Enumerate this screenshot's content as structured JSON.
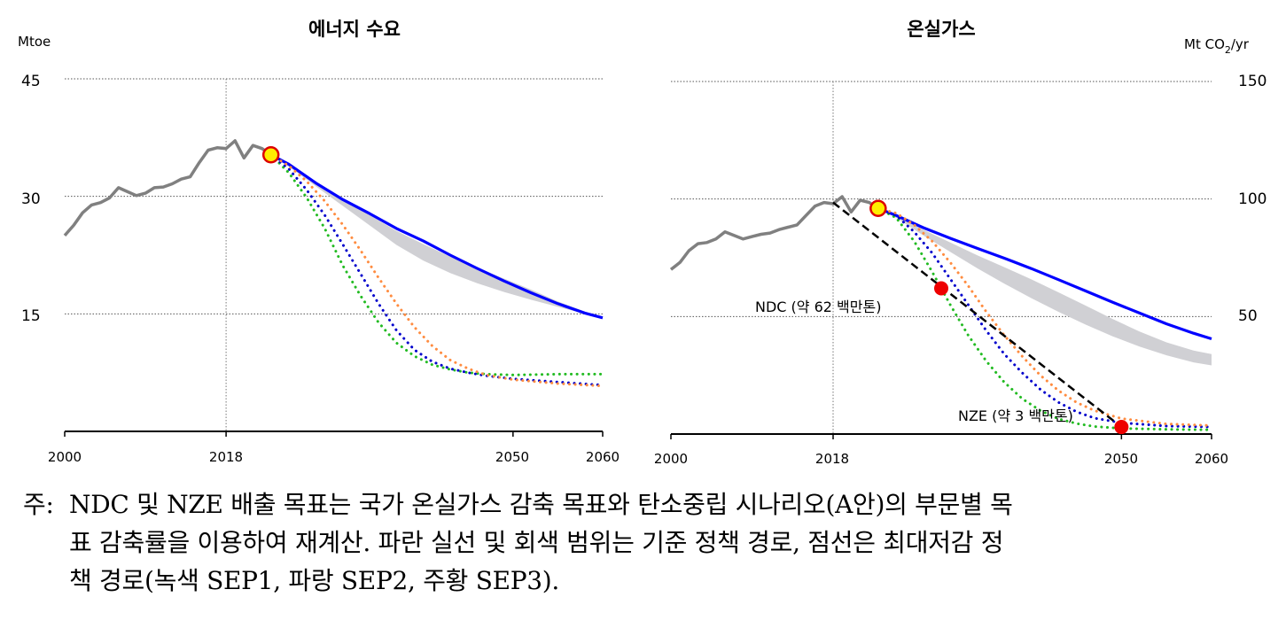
{
  "chart_data": [
    {
      "type": "line",
      "title": "에너지 수요",
      "ylabel": "Mtoe",
      "xlim": [
        2000,
        2060
      ],
      "ylim": [
        0,
        45
      ],
      "y_ticks": [
        "15",
        "30",
        "45"
      ],
      "x_ticks": [
        "2000",
        "2018",
        "2050",
        "2060"
      ],
      "grid": "horizontal dotted",
      "vline": 2018,
      "marker": {
        "x": 2023,
        "y": 35.3
      },
      "band": {
        "x": [
          2023,
          2025,
          2028,
          2031,
          2034,
          2037,
          2040,
          2043,
          2046,
          2049,
          2052,
          2055,
          2058,
          2060
        ],
        "lower": [
          35.3,
          33.8,
          31.3,
          28.8,
          26.3,
          23.8,
          21.8,
          20.2,
          18.9,
          17.8,
          16.8,
          15.9,
          15.0,
          14.6
        ],
        "upper": [
          35.3,
          34.0,
          31.8,
          29.7,
          27.6,
          25.6,
          23.9,
          22.3,
          20.9,
          19.5,
          18.1,
          16.6,
          15.3,
          14.6
        ]
      },
      "series": [
        {
          "color": "#808080",
          "style": "solid",
          "x": [
            2000,
            2001,
            2002,
            2003,
            2004,
            2005,
            2006,
            2007,
            2008,
            2009,
            2010,
            2011,
            2012,
            2013,
            2014,
            2015,
            2016,
            2017,
            2018,
            2019,
            2020,
            2021,
            2022,
            2023
          ],
          "y": [
            25.0,
            26.3,
            27.9,
            28.9,
            29.2,
            29.8,
            31.1,
            30.6,
            30.1,
            30.4,
            31.1,
            31.2,
            31.6,
            32.2,
            32.5,
            34.3,
            35.9,
            36.2,
            36.1,
            37.1,
            34.9,
            36.5,
            36.1,
            35.3
          ]
        },
        {
          "color": "#0000ff",
          "style": "solid",
          "x": [
            2023,
            2025,
            2028,
            2031,
            2034,
            2037,
            2040,
            2043,
            2046,
            2049,
            2052,
            2055,
            2058,
            2060
          ],
          "y": [
            35.3,
            34.1,
            31.7,
            29.6,
            27.8,
            25.9,
            24.3,
            22.5,
            20.8,
            19.2,
            17.7,
            16.3,
            15.1,
            14.5
          ]
        },
        {
          "color": "#22bb22",
          "style": "dotted",
          "x": [
            2023,
            2025,
            2027,
            2029,
            2031,
            2033,
            2035,
            2037,
            2039,
            2041,
            2043,
            2045,
            2047,
            2050,
            2055,
            2060
          ],
          "y": [
            35.3,
            33.0,
            29.8,
            25.9,
            21.2,
            17.3,
            13.9,
            11.3,
            9.6,
            8.5,
            7.9,
            7.5,
            7.3,
            7.2,
            7.3,
            7.3
          ]
        },
        {
          "color": "#0000cc",
          "style": "dotted",
          "x": [
            2023,
            2025,
            2027,
            2029,
            2031,
            2033,
            2035,
            2037,
            2039,
            2041,
            2043,
            2045,
            2047,
            2050,
            2055,
            2060
          ],
          "y": [
            35.3,
            33.5,
            30.8,
            27.6,
            23.9,
            20.1,
            16.3,
            12.9,
            10.4,
            8.9,
            8.0,
            7.5,
            7.1,
            6.7,
            6.3,
            5.9
          ]
        },
        {
          "color": "#ff8c40",
          "style": "dotted",
          "x": [
            2023,
            2025,
            2027,
            2029,
            2031,
            2033,
            2035,
            2037,
            2039,
            2041,
            2043,
            2045,
            2047,
            2050,
            2055,
            2060
          ],
          "y": [
            35.3,
            33.9,
            31.9,
            29.4,
            26.4,
            23.1,
            19.6,
            16.3,
            13.3,
            10.9,
            9.1,
            8.0,
            7.2,
            6.6,
            6.1,
            5.8
          ]
        }
      ]
    },
    {
      "type": "line",
      "title": "온실가스",
      "ylabel": "Mt CO",
      "ylabel_sub": "2",
      "ylabel_suffix": "/yr",
      "xlim": [
        2000,
        2060
      ],
      "ylim": [
        0,
        150
      ],
      "y_ticks": [
        "50",
        "100",
        "150"
      ],
      "x_ticks": [
        "2000",
        "2018",
        "2050",
        "2060"
      ],
      "grid": "horizontal dotted",
      "vline": 2018,
      "marker": {
        "x": 2023,
        "y": 96
      },
      "band": {
        "x": [
          2023,
          2025,
          2028,
          2031,
          2034,
          2037,
          2040,
          2043,
          2046,
          2049,
          2052,
          2055,
          2058,
          2060
        ],
        "lower": [
          96,
          92,
          84.5,
          77.5,
          70.5,
          64.0,
          57.8,
          52.0,
          46.6,
          41.6,
          37.2,
          33.5,
          30.5,
          29.2
        ],
        "upper": [
          96,
          93,
          87.0,
          81.5,
          76.0,
          71.0,
          65.8,
          60.3,
          54.7,
          49.0,
          43.6,
          39.0,
          35.5,
          34.0
        ]
      },
      "series": [
        {
          "color": "#808080",
          "style": "solid",
          "x": [
            2000,
            2001,
            2002,
            2003,
            2004,
            2005,
            2006,
            2007,
            2008,
            2009,
            2010,
            2011,
            2012,
            2013,
            2014,
            2015,
            2016,
            2017,
            2018,
            2019,
            2020,
            2021,
            2022,
            2023
          ],
          "y": [
            70,
            73,
            78,
            81,
            81.5,
            83,
            86,
            84.5,
            83,
            84,
            85,
            85.5,
            87,
            88,
            89,
            93,
            97,
            98.5,
            98,
            101,
            94.5,
            99.5,
            98.5,
            96
          ]
        },
        {
          "color": "#0000ff",
          "style": "solid",
          "x": [
            2023,
            2025,
            2028,
            2031,
            2034,
            2037,
            2040,
            2043,
            2046,
            2049,
            2052,
            2055,
            2058,
            2060
          ],
          "y": [
            96,
            93,
            87.8,
            83.3,
            79,
            74.8,
            70.4,
            65.7,
            60.9,
            56.1,
            51.5,
            46.9,
            42.9,
            40.5
          ]
        },
        {
          "color": "#22bb22",
          "style": "dotted",
          "x": [
            2023,
            2025,
            2027,
            2029,
            2031,
            2033,
            2035,
            2037,
            2039,
            2041,
            2043,
            2045,
            2047,
            2050,
            2055,
            2060
          ],
          "y": [
            96,
            92,
            82,
            69,
            55,
            42,
            31,
            22,
            15,
            10,
            6.5,
            4.5,
            3.2,
            2.4,
            2.0,
            1.8
          ]
        },
        {
          "color": "#0000cc",
          "style": "dotted",
          "x": [
            2023,
            2025,
            2027,
            2029,
            2031,
            2033,
            2035,
            2037,
            2039,
            2041,
            2043,
            2045,
            2047,
            2050,
            2055,
            2060
          ],
          "y": [
            96,
            93,
            86,
            77,
            66,
            55,
            44,
            34,
            26,
            19,
            13.5,
            9.5,
            6.8,
            4.8,
            3.4,
            3.0
          ]
        },
        {
          "color": "#ff8c40",
          "style": "dotted",
          "x": [
            2023,
            2025,
            2027,
            2029,
            2031,
            2033,
            2035,
            2037,
            2039,
            2041,
            2043,
            2045,
            2047,
            2050,
            2055,
            2060
          ],
          "y": [
            96,
            94,
            89,
            82,
            73,
            63,
            52,
            42,
            33,
            25,
            18.5,
            13.5,
            10,
            6.6,
            4.3,
            3.6
          ]
        },
        {
          "color": "#000000",
          "style": "dashed",
          "x": [
            2018,
            2050
          ],
          "y": [
            98.5,
            3
          ]
        }
      ],
      "points": [
        {
          "label": "NDC (약 62 백만톤)",
          "x": 2030,
          "y": 62
        },
        {
          "label": "NZE (약 3 백만톤)",
          "x": 2050,
          "y": 3
        }
      ]
    }
  ],
  "note": {
    "lead": "주:",
    "lines": [
      "NDC 및 NZE 배출 목표는 국가 온실가스 감축 목표와 탄소중립 시나리오(A안)의 부문별 목",
      "표 감축률을 이용하여 재계산. 파란 실선 및 회색 범위는 기준 정책 경로, 점선은 최대저감 정",
      "책 경로(녹색 SEP1, 파랑 SEP2, 주황 SEP3)."
    ]
  }
}
